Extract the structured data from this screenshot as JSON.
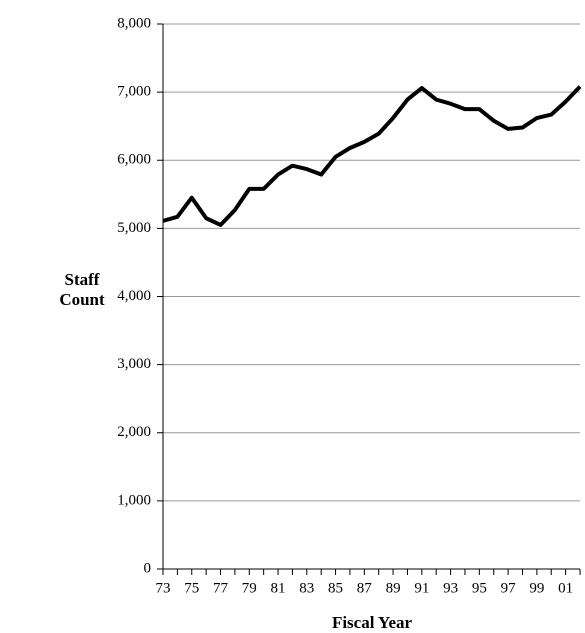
{
  "chart_data": {
    "type": "line",
    "x_label": "Fiscal Year",
    "y_label": "Staff Count",
    "categories": [
      "73",
      null,
      "75",
      null,
      "77",
      null,
      "79",
      null,
      "81",
      null,
      "83",
      null,
      "85",
      null,
      "87",
      null,
      "89",
      null,
      "91",
      null,
      "93",
      null,
      "95",
      null,
      "97",
      null,
      "99",
      null,
      "01",
      null
    ],
    "series": [
      {
        "name": "Staff Count",
        "color": "#000000",
        "values": [
          5110,
          5170,
          5450,
          5150,
          5050,
          5270,
          5580,
          5580,
          5790,
          5920,
          5870,
          5790,
          6050,
          6180,
          6270,
          6390,
          6620,
          6890,
          7060,
          6890,
          6830,
          6750,
          6750,
          6580,
          6460,
          6480,
          6620,
          6670,
          6860,
          7080
        ]
      }
    ],
    "ylim": [
      0,
      8000
    ],
    "yticks": [
      0,
      {
        "value": 1000,
        "label": "1,000"
      },
      {
        "value": 2000,
        "label": "2,000"
      },
      {
        "value": 3000,
        "label": "3,000"
      },
      {
        "value": 4000,
        "label": "4,000"
      },
      {
        "value": 5000,
        "label": "5,000"
      },
      {
        "value": 6000,
        "label": "6,000"
      },
      {
        "value": 7000,
        "label": "7,000"
      },
      {
        "value": 8000,
        "label": "8,000"
      }
    ],
    "grid": true
  }
}
